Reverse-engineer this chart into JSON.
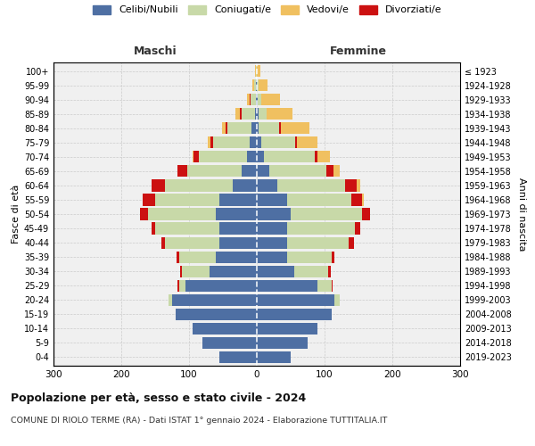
{
  "age_groups": [
    "0-4",
    "5-9",
    "10-14",
    "15-19",
    "20-24",
    "25-29",
    "30-34",
    "35-39",
    "40-44",
    "45-49",
    "50-54",
    "55-59",
    "60-64",
    "65-69",
    "70-74",
    "75-79",
    "80-84",
    "85-89",
    "90-94",
    "95-99",
    "100+"
  ],
  "birth_years": [
    "2019-2023",
    "2014-2018",
    "2009-2013",
    "2004-2008",
    "1999-2003",
    "1994-1998",
    "1989-1993",
    "1984-1988",
    "1979-1983",
    "1974-1978",
    "1969-1973",
    "1964-1968",
    "1959-1963",
    "1954-1958",
    "1949-1953",
    "1944-1948",
    "1939-1943",
    "1934-1938",
    "1929-1933",
    "1924-1928",
    "≤ 1923"
  ],
  "males": {
    "celibi": [
      55,
      80,
      95,
      120,
      125,
      105,
      70,
      60,
      55,
      55,
      60,
      55,
      35,
      22,
      15,
      10,
      8,
      3,
      1,
      1,
      0
    ],
    "coniugati": [
      0,
      0,
      0,
      0,
      5,
      10,
      40,
      55,
      80,
      95,
      100,
      95,
      100,
      80,
      70,
      55,
      35,
      20,
      8,
      3,
      1
    ],
    "vedovi": [
      0,
      0,
      0,
      0,
      0,
      0,
      0,
      0,
      0,
      0,
      0,
      0,
      0,
      0,
      2,
      4,
      5,
      6,
      5,
      3,
      1
    ],
    "divorziati": [
      0,
      0,
      0,
      0,
      0,
      2,
      3,
      3,
      6,
      5,
      12,
      18,
      20,
      15,
      8,
      4,
      3,
      2,
      1,
      0,
      0
    ]
  },
  "females": {
    "nubili": [
      50,
      75,
      90,
      110,
      115,
      90,
      55,
      45,
      45,
      45,
      50,
      45,
      30,
      18,
      10,
      6,
      3,
      2,
      1,
      0,
      0
    ],
    "coniugate": [
      0,
      0,
      0,
      0,
      8,
      20,
      50,
      65,
      90,
      100,
      105,
      95,
      100,
      85,
      75,
      50,
      30,
      12,
      5,
      2,
      0
    ],
    "vedove": [
      0,
      0,
      0,
      0,
      0,
      0,
      0,
      0,
      0,
      0,
      0,
      3,
      5,
      10,
      18,
      30,
      42,
      38,
      28,
      14,
      5
    ],
    "divorziate": [
      0,
      0,
      0,
      0,
      0,
      2,
      4,
      5,
      8,
      8,
      12,
      15,
      18,
      10,
      5,
      3,
      2,
      1,
      0,
      0,
      0
    ]
  },
  "colors": {
    "celibi": "#4e6fa3",
    "coniugati": "#c8d9a8",
    "vedovi": "#f0c060",
    "divorziati": "#cc1111"
  },
  "title": "Popolazione per età, sesso e stato civile - 2024",
  "subtitle": "COMUNE DI RIOLO TERME (RA) - Dati ISTAT 1° gennaio 2024 - Elaborazione TUTTITALIA.IT",
  "xlabel_left": "Maschi",
  "xlabel_right": "Femmine",
  "ylabel": "Fasce di età",
  "ylabel_right": "Anni di nascita",
  "xlim": 300,
  "background_color": "#f0f0f0",
  "plot_bg": "#ffffff",
  "legend_labels": [
    "Celibi/Nubili",
    "Coniugati/e",
    "Vedovi/e",
    "Divorziati/e"
  ]
}
